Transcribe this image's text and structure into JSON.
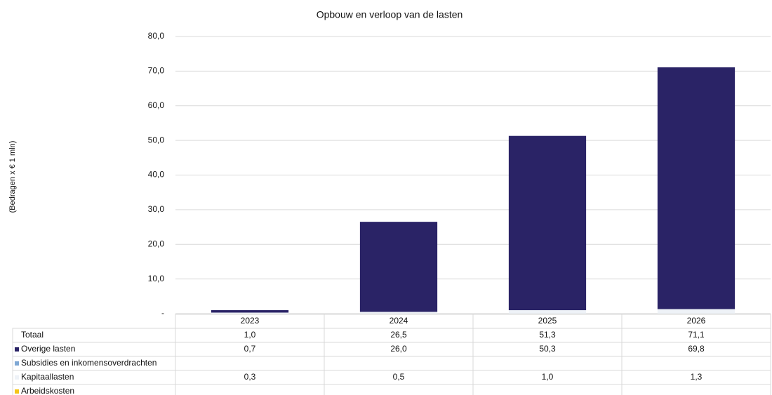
{
  "chart_data": {
    "type": "bar",
    "stacked": true,
    "title": "Opbouw en verloop van de lasten",
    "y_label": "(Bedragen x € 1 mln)",
    "categories": [
      "2023",
      "2024",
      "2025",
      "2026"
    ],
    "totals": {
      "name": "Totaal",
      "values": [
        1.0,
        26.5,
        51.3,
        71.1
      ],
      "value_labels": [
        "1,0",
        "26,5",
        "51,3",
        "71,1"
      ]
    },
    "series": [
      {
        "name": "Overige lasten",
        "color": "#2a2366",
        "values": [
          0.7,
          26.0,
          50.3,
          69.8
        ],
        "value_labels": [
          "0,7",
          "26,0",
          "50,3",
          "69,8"
        ]
      },
      {
        "name": "Subsidies en inkomensoverdrachten",
        "color": "#7fa8d4",
        "values": [
          null,
          null,
          null,
          null
        ]
      },
      {
        "name": "Kapitaallasten",
        "color": "#eef2f7",
        "values": [
          0.3,
          0.5,
          1.0,
          1.3
        ],
        "value_labels": [
          "0,3",
          "0,5",
          "1,0",
          "1,3"
        ]
      },
      {
        "name": "Arbeidskosten",
        "color": "#f5c518",
        "values": [
          null,
          null,
          null,
          null
        ]
      }
    ],
    "ylim": [
      0,
      80
    ],
    "yticks": [
      {
        "value": 0,
        "label": "-"
      },
      {
        "value": 10,
        "label": "10,0"
      },
      {
        "value": 20,
        "label": "20,0"
      },
      {
        "value": 30,
        "label": "30,0"
      },
      {
        "value": 40,
        "label": "40,0"
      },
      {
        "value": 50,
        "label": "50,0"
      },
      {
        "value": 60,
        "label": "60,0"
      },
      {
        "value": 70,
        "label": "70,0"
      },
      {
        "value": 80,
        "label": "80,0"
      }
    ],
    "grid": true
  }
}
